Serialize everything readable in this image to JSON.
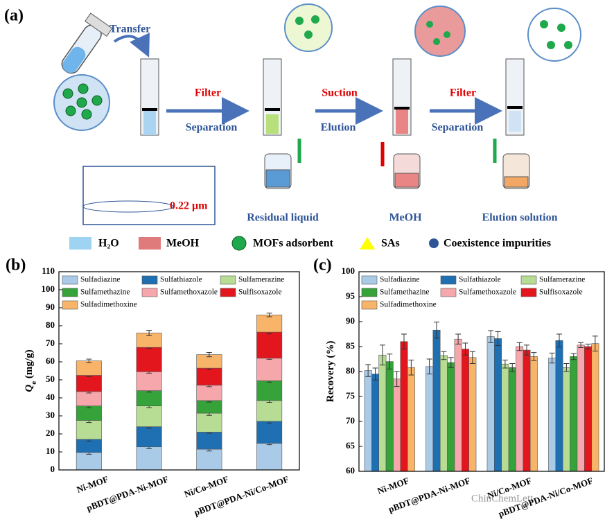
{
  "diagram": {
    "panel_label": "(a)",
    "panel_b": "(b)",
    "panel_c": "(c)",
    "transfer": "Transfer",
    "step1_top": "Filter",
    "step1_bottom": "Separation",
    "step2_top": "Suction",
    "step2_bottom": "Elution",
    "step3_top": "Filter",
    "step3_bottom": "Separation",
    "pore_size": "0.22 μm",
    "residual": "Residual liquid",
    "meoh": "MeOH",
    "elution_solution": "Elution solution",
    "legend": [
      "H₂O",
      "MeOH",
      "MOFs adsorbent",
      "SAs",
      "Coexistence impurities"
    ],
    "watermark": "ChinChemLett"
  },
  "chart_data": [
    {
      "type": "bar",
      "stacked": true,
      "ylabel": "Q",
      "ylabel_sub": "e",
      "ylabel_unit": " (mg/g)",
      "categories": [
        "Ni-MOF",
        "pBDT@PDA-Ni-MOF",
        "Ni/Co-MOF",
        "pBDT@PDA-Ni/Co-MOF"
      ],
      "ylim": [
        0,
        110
      ],
      "yticks": [
        0,
        10,
        20,
        30,
        40,
        50,
        60,
        70,
        80,
        90,
        100,
        110
      ],
      "series": [
        {
          "name": "Sulfadiazine",
          "color": "#a9cbe8",
          "values": [
            9.7,
            12.8,
            11.5,
            14.8
          ],
          "errors": [
            1.0,
            1.0,
            1.0,
            0.8
          ]
        },
        {
          "name": "Sulfathiazole",
          "color": "#1f6fb3",
          "values": [
            7.3,
            11.2,
            9.5,
            12.2
          ],
          "errors": [
            1.0,
            0.8,
            0.6,
            1.0
          ]
        },
        {
          "name": "Sulfamerazine",
          "color": "#b7dd94",
          "values": [
            10.5,
            11.5,
            10.5,
            11.5
          ],
          "errors": [
            1.2,
            1.0,
            1.2,
            1.0
          ]
        },
        {
          "name": "Sulfamethazine",
          "color": "#35a23a",
          "values": [
            8,
            8.5,
            7,
            11
          ],
          "errors": [
            1.0,
            0.8,
            0.8,
            0.8
          ]
        },
        {
          "name": "Sulfamethoxazole",
          "color": "#f5a7ab",
          "values": [
            8,
            10.5,
            8.5,
            12.5
          ],
          "errors": [
            0.8,
            0.8,
            0.8,
            0.6
          ]
        },
        {
          "name": "Sulfisoxazole",
          "color": "#e3161d",
          "values": [
            9,
            13.5,
            9.5,
            14.5
          ],
          "errors": [
            0.8,
            0.6,
            0.8,
            1.0
          ]
        },
        {
          "name": "Sulfadimethoxine",
          "color": "#f8b468",
          "values": [
            8,
            8,
            7.5,
            9.5
          ],
          "errors": [
            1.0,
            1.5,
            1.2,
            1.0
          ]
        }
      ]
    },
    {
      "type": "bar",
      "stacked": false,
      "ylabel": "Recovery (%)",
      "categories": [
        "Ni-MOF",
        "pBDT@PDA-Ni-MOF",
        "Ni/Co-MOF",
        "pBDT@PDA-Ni/Co-MOF"
      ],
      "ylim": [
        60,
        100
      ],
      "yticks": [
        60,
        65,
        70,
        75,
        80,
        85,
        90,
        95,
        100
      ],
      "series": [
        {
          "name": "Sulfadiazine",
          "color": "#a9cbe8",
          "values": [
            80.2,
            81.0,
            87.0,
            82.7
          ],
          "errors": [
            1.2,
            1.5,
            1.2,
            1.0
          ]
        },
        {
          "name": "Sulfathiazole",
          "color": "#1f6fb3",
          "values": [
            79.5,
            88.3,
            86.6,
            86.2
          ],
          "errors": [
            1.2,
            1.6,
            1.4,
            1.3
          ]
        },
        {
          "name": "Sulfamerazine",
          "color": "#b7dd94",
          "values": [
            83.3,
            83.2,
            81.5,
            80.8
          ],
          "errors": [
            2.0,
            0.8,
            0.8,
            0.8
          ]
        },
        {
          "name": "Sulfamethazine",
          "color": "#35a23a",
          "values": [
            82.0,
            81.8,
            80.8,
            83.0
          ],
          "errors": [
            1.5,
            1.0,
            0.8,
            0.6
          ]
        },
        {
          "name": "Sulfamethoxazole",
          "color": "#f5a7ab",
          "values": [
            78.5,
            86.5,
            85.0,
            85.3
          ],
          "errors": [
            1.5,
            1.0,
            0.8,
            0.5
          ]
        },
        {
          "name": "Sulfisoxazole",
          "color": "#e3161d",
          "values": [
            86.0,
            84.5,
            84.3,
            85.0
          ],
          "errors": [
            1.5,
            1.2,
            1.0,
            0.5
          ]
        },
        {
          "name": "Sulfadimethoxine",
          "color": "#f8b468",
          "values": [
            80.8,
            82.8,
            83.0,
            85.6
          ],
          "errors": [
            1.5,
            1.2,
            0.8,
            1.5
          ]
        }
      ]
    }
  ]
}
